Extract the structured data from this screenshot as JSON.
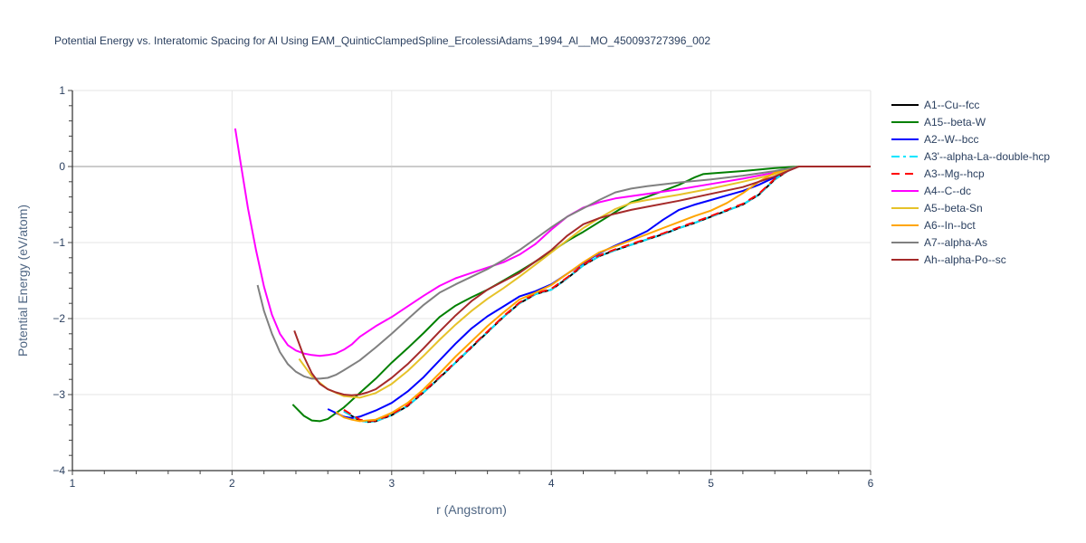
{
  "title": "Potential Energy vs. Interatomic Spacing for Al Using EAM_QuinticClampedSpline_ErcolessiAdams_1994_Al__MO_450093727396_002",
  "chart_data": {
    "type": "line",
    "title": "Potential Energy vs. Interatomic Spacing for Al Using EAM_QuinticClampedSpline_ErcolessiAdams_1994_Al__MO_450093727396_002",
    "xlabel": "r (Angstrom)",
    "ylabel": "Potential Energy (eV/atom)",
    "xlim": [
      1,
      6
    ],
    "ylim": [
      -4,
      1
    ],
    "xticks": [
      1,
      2,
      3,
      4,
      5,
      6
    ],
    "yticks": [
      1,
      0,
      -1,
      -2,
      -3,
      -4
    ],
    "ytick_labels": [
      "1",
      "0",
      "−1",
      "−2",
      "−3",
      "−4"
    ],
    "grid": true,
    "legend_position": "right",
    "series": [
      {
        "name": "A1--Cu--fcc",
        "color": "#000000",
        "dash": "solid",
        "x": [
          2.7,
          2.8,
          2.85,
          2.9,
          3.0,
          3.1,
          3.2,
          3.3,
          3.4,
          3.5,
          3.6,
          3.7,
          3.8,
          3.9,
          4.0,
          4.1,
          4.2,
          4.3,
          4.4,
          4.5,
          4.6,
          4.7,
          4.8,
          4.9,
          5.0,
          5.1,
          5.2,
          5.3,
          5.4,
          5.5,
          5.55,
          6.0
        ],
        "y": [
          -3.22,
          -3.34,
          -3.36,
          -3.35,
          -3.27,
          -3.15,
          -2.97,
          -2.78,
          -2.58,
          -2.38,
          -2.18,
          -1.98,
          -1.8,
          -1.68,
          -1.62,
          -1.47,
          -1.3,
          -1.18,
          -1.1,
          -1.03,
          -0.96,
          -0.89,
          -0.81,
          -0.74,
          -0.66,
          -0.58,
          -0.5,
          -0.37,
          -0.17,
          -0.03,
          0.0,
          0.0
        ]
      },
      {
        "name": "A15--beta-W",
        "color": "#008000",
        "dash": "solid",
        "x": [
          2.38,
          2.45,
          2.5,
          2.55,
          2.6,
          2.7,
          2.8,
          2.9,
          3.0,
          3.1,
          3.2,
          3.3,
          3.4,
          3.5,
          3.6,
          3.7,
          3.8,
          3.9,
          4.0,
          4.1,
          4.2,
          4.3,
          4.4,
          4.5,
          4.6,
          4.7,
          4.8,
          4.9,
          4.95,
          5.0,
          5.2,
          5.4,
          5.55,
          6.0
        ],
        "y": [
          -3.13,
          -3.28,
          -3.34,
          -3.35,
          -3.32,
          -3.17,
          -2.98,
          -2.79,
          -2.58,
          -2.39,
          -2.19,
          -1.98,
          -1.83,
          -1.72,
          -1.62,
          -1.5,
          -1.38,
          -1.25,
          -1.12,
          -0.98,
          -0.86,
          -0.73,
          -0.6,
          -0.47,
          -0.4,
          -0.32,
          -0.24,
          -0.14,
          -0.1,
          -0.09,
          -0.06,
          -0.02,
          0.0,
          0.0
        ]
      },
      {
        "name": "A2--W--bcc",
        "color": "#0000ff",
        "dash": "solid",
        "x": [
          2.6,
          2.7,
          2.75,
          2.8,
          2.9,
          3.0,
          3.1,
          3.2,
          3.3,
          3.4,
          3.5,
          3.6,
          3.7,
          3.8,
          3.9,
          4.0,
          4.1,
          4.2,
          4.3,
          4.4,
          4.5,
          4.6,
          4.7,
          4.8,
          4.9,
          5.0,
          5.1,
          5.2,
          5.3,
          5.4,
          5.5,
          5.55,
          6.0
        ],
        "y": [
          -3.19,
          -3.29,
          -3.31,
          -3.29,
          -3.21,
          -3.11,
          -2.96,
          -2.77,
          -2.55,
          -2.33,
          -2.13,
          -1.97,
          -1.84,
          -1.71,
          -1.64,
          -1.55,
          -1.41,
          -1.27,
          -1.14,
          -1.04,
          -0.95,
          -0.85,
          -0.7,
          -0.57,
          -0.5,
          -0.44,
          -0.38,
          -0.32,
          -0.24,
          -0.14,
          -0.04,
          0.0,
          0.0
        ]
      },
      {
        "name": "A3'--alpha-La--double-hcp",
        "color": "#00e5ff",
        "dash": "dashdot",
        "x": [
          2.7,
          2.8,
          2.85,
          2.9,
          3.0,
          3.1,
          3.2,
          3.3,
          3.4,
          3.5,
          3.6,
          3.7,
          3.8,
          3.9,
          4.0,
          4.1,
          4.2,
          4.3,
          4.4,
          4.5,
          4.6,
          4.7,
          4.8,
          4.9,
          5.0,
          5.1,
          5.2,
          5.3,
          5.4,
          5.5,
          5.55,
          6.0
        ],
        "y": [
          -3.22,
          -3.34,
          -3.36,
          -3.35,
          -3.27,
          -3.15,
          -2.97,
          -2.78,
          -2.58,
          -2.38,
          -2.18,
          -1.98,
          -1.8,
          -1.68,
          -1.62,
          -1.47,
          -1.3,
          -1.18,
          -1.1,
          -1.03,
          -0.96,
          -0.89,
          -0.81,
          -0.74,
          -0.66,
          -0.58,
          -0.5,
          -0.37,
          -0.17,
          -0.03,
          0.0,
          0.0
        ]
      },
      {
        "name": "A3--Mg--hcp",
        "color": "#ff0000",
        "dash": "dash",
        "x": [
          2.7,
          2.8,
          2.85,
          2.9,
          3.0,
          3.1,
          3.2,
          3.3,
          3.4,
          3.5,
          3.6,
          3.7,
          3.8,
          3.9,
          4.0,
          4.1,
          4.2,
          4.3,
          4.4,
          4.5,
          4.6,
          4.7,
          4.8,
          4.9,
          5.0,
          5.1,
          5.2,
          5.3,
          5.4,
          5.5,
          5.55,
          6.0
        ],
        "y": [
          -3.2,
          -3.33,
          -3.35,
          -3.34,
          -3.26,
          -3.14,
          -2.96,
          -2.77,
          -2.57,
          -2.37,
          -2.17,
          -1.97,
          -1.79,
          -1.67,
          -1.61,
          -1.46,
          -1.29,
          -1.17,
          -1.09,
          -1.02,
          -0.95,
          -0.88,
          -0.8,
          -0.73,
          -0.65,
          -0.57,
          -0.49,
          -0.36,
          -0.16,
          -0.03,
          0.0,
          0.0
        ]
      },
      {
        "name": "A4--C--dc",
        "color": "#ff00ff",
        "dash": "solid",
        "x": [
          2.02,
          2.05,
          2.1,
          2.15,
          2.2,
          2.25,
          2.3,
          2.35,
          2.4,
          2.45,
          2.5,
          2.55,
          2.6,
          2.65,
          2.7,
          2.75,
          2.8,
          2.9,
          3.0,
          3.1,
          3.2,
          3.3,
          3.4,
          3.5,
          3.6,
          3.7,
          3.8,
          3.9,
          4.0,
          4.1,
          4.2,
          4.3,
          4.4,
          4.5,
          4.6,
          4.8,
          5.0,
          5.2,
          5.4,
          5.55,
          6.0
        ],
        "y": [
          0.5,
          0.1,
          -0.55,
          -1.1,
          -1.58,
          -1.95,
          -2.2,
          -2.35,
          -2.42,
          -2.46,
          -2.48,
          -2.49,
          -2.48,
          -2.46,
          -2.41,
          -2.34,
          -2.24,
          -2.1,
          -1.98,
          -1.84,
          -1.7,
          -1.57,
          -1.47,
          -1.4,
          -1.33,
          -1.26,
          -1.16,
          -1.02,
          -0.83,
          -0.66,
          -0.54,
          -0.47,
          -0.42,
          -0.39,
          -0.36,
          -0.3,
          -0.23,
          -0.16,
          -0.08,
          0.0,
          0.0
        ]
      },
      {
        "name": "A5--beta-Sn",
        "color": "#e6c229",
        "dash": "solid",
        "x": [
          2.42,
          2.5,
          2.6,
          2.7,
          2.8,
          2.9,
          3.0,
          3.1,
          3.2,
          3.3,
          3.4,
          3.5,
          3.6,
          3.7,
          3.8,
          3.9,
          4.0,
          4.1,
          4.2,
          4.3,
          4.4,
          4.5,
          4.6,
          4.8,
          5.0,
          5.2,
          5.4,
          5.55,
          6.0
        ],
        "y": [
          -2.53,
          -2.76,
          -2.93,
          -3.02,
          -3.04,
          -2.98,
          -2.86,
          -2.69,
          -2.49,
          -2.28,
          -2.08,
          -1.9,
          -1.74,
          -1.6,
          -1.45,
          -1.29,
          -1.13,
          -0.97,
          -0.81,
          -0.68,
          -0.56,
          -0.48,
          -0.44,
          -0.37,
          -0.29,
          -0.2,
          -0.1,
          0.0,
          0.0
        ]
      },
      {
        "name": "A6--In--bct",
        "color": "#ffa500",
        "dash": "solid",
        "x": [
          2.65,
          2.7,
          2.75,
          2.8,
          2.9,
          3.0,
          3.1,
          3.2,
          3.3,
          3.4,
          3.5,
          3.6,
          3.7,
          3.8,
          3.9,
          4.0,
          4.1,
          4.2,
          4.3,
          4.4,
          4.5,
          4.6,
          4.7,
          4.8,
          4.9,
          5.0,
          5.1,
          5.2,
          5.3,
          5.4,
          5.5,
          5.55,
          6.0
        ],
        "y": [
          -3.23,
          -3.3,
          -3.33,
          -3.35,
          -3.33,
          -3.24,
          -3.11,
          -2.93,
          -2.72,
          -2.5,
          -2.3,
          -2.1,
          -1.92,
          -1.75,
          -1.66,
          -1.56,
          -1.41,
          -1.26,
          -1.13,
          -1.05,
          -0.97,
          -0.89,
          -0.81,
          -0.73,
          -0.65,
          -0.58,
          -0.48,
          -0.35,
          -0.2,
          -0.08,
          -0.02,
          0.0,
          0.0
        ]
      },
      {
        "name": "A7--alpha-As",
        "color": "#808080",
        "dash": "solid",
        "x": [
          2.16,
          2.2,
          2.25,
          2.3,
          2.35,
          2.4,
          2.45,
          2.5,
          2.55,
          2.6,
          2.65,
          2.7,
          2.8,
          2.9,
          3.0,
          3.1,
          3.2,
          3.3,
          3.4,
          3.5,
          3.6,
          3.7,
          3.8,
          3.9,
          4.0,
          4.1,
          4.2,
          4.3,
          4.4,
          4.5,
          4.6,
          4.8,
          5.0,
          5.2,
          5.4,
          5.55,
          6.0
        ],
        "y": [
          -1.56,
          -1.9,
          -2.2,
          -2.44,
          -2.6,
          -2.7,
          -2.76,
          -2.79,
          -2.79,
          -2.78,
          -2.74,
          -2.68,
          -2.55,
          -2.38,
          -2.2,
          -2.01,
          -1.82,
          -1.66,
          -1.55,
          -1.45,
          -1.35,
          -1.23,
          -1.1,
          -0.95,
          -0.8,
          -0.66,
          -0.55,
          -0.44,
          -0.34,
          -0.29,
          -0.26,
          -0.21,
          -0.17,
          -0.12,
          -0.06,
          0.0,
          0.0
        ]
      },
      {
        "name": "Ah--alpha-Po--sc",
        "color": "#a52a2a",
        "dash": "solid",
        "x": [
          2.39,
          2.45,
          2.5,
          2.55,
          2.6,
          2.65,
          2.7,
          2.75,
          2.8,
          2.85,
          2.9,
          3.0,
          3.1,
          3.2,
          3.3,
          3.4,
          3.5,
          3.6,
          3.7,
          3.8,
          3.9,
          4.0,
          4.1,
          4.2,
          4.3,
          4.4,
          4.5,
          4.6,
          4.8,
          5.0,
          5.2,
          5.4,
          5.55,
          6.0
        ],
        "y": [
          -2.16,
          -2.5,
          -2.72,
          -2.86,
          -2.93,
          -2.97,
          -3.0,
          -3.01,
          -3.0,
          -2.97,
          -2.93,
          -2.78,
          -2.6,
          -2.39,
          -2.17,
          -1.96,
          -1.77,
          -1.62,
          -1.51,
          -1.4,
          -1.25,
          -1.1,
          -0.91,
          -0.76,
          -0.68,
          -0.62,
          -0.57,
          -0.53,
          -0.45,
          -0.36,
          -0.27,
          -0.13,
          0.0,
          0.0
        ]
      }
    ]
  }
}
